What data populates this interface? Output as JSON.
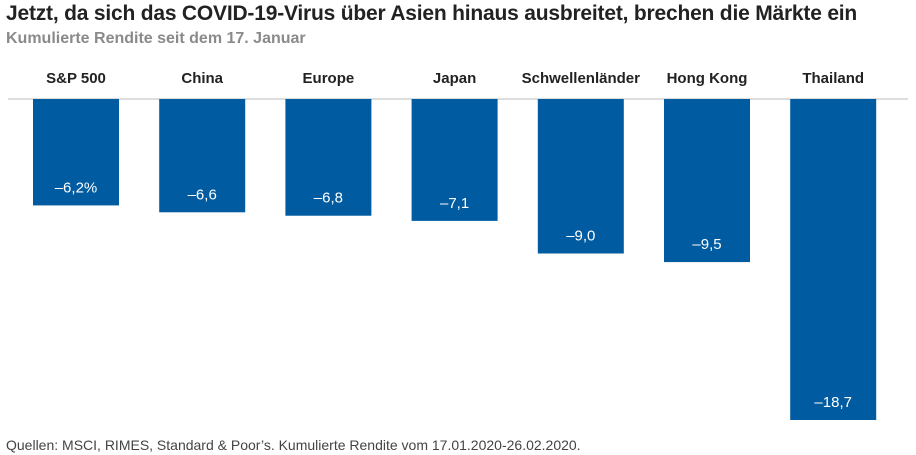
{
  "header": {
    "title": "Jetzt, da sich das COVID-19-Virus über Asien hinaus ausbreitet, brechen die Märkte ein",
    "subtitle": "Kumulierte Rendite seit dem 17. Januar"
  },
  "footer": {
    "source": "Quellen: MSCI, RIMES, Standard & Poor’s. Kumulierte Rendite vom 17.01.2020-26.02.2020."
  },
  "chart_data": {
    "type": "bar",
    "categories": [
      "S&P 500",
      "China",
      "Europe",
      "Japan",
      "Schwellenländer",
      "Hong Kong",
      "Thailand"
    ],
    "values": [
      -6.2,
      -6.6,
      -6.8,
      -7.1,
      -9.0,
      -9.5,
      -18.7
    ],
    "data_labels": [
      "–6,2%",
      "–6,6",
      "–6,8",
      "–7,1",
      "–9,0",
      "–9,5",
      "–18,7"
    ],
    "ylim": [
      -18.7,
      0
    ],
    "grid": false,
    "category_labels_position": "top",
    "bar_color": "#005ba0",
    "baseline_color": "#bbbbbb",
    "label_color": "#ffffff"
  }
}
